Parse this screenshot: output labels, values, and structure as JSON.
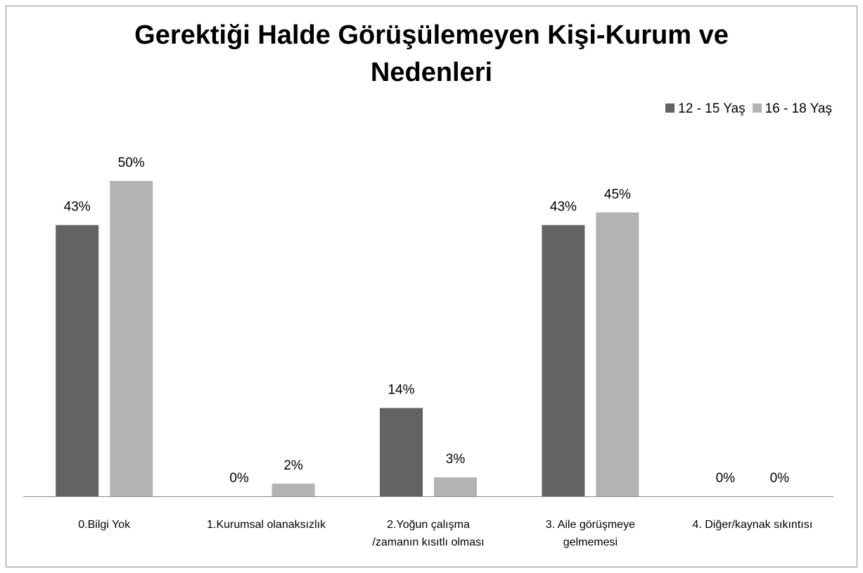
{
  "chart_data": {
    "type": "bar",
    "title": "Gerektiği Halde Görüşülemeyen Kişi-Kurum ve Nedenleri",
    "categories": [
      "0.Bilgi Yok",
      "1.Kurumsal olanaksızlık",
      "2.Yoğun çalışma /zamanın kısıtlı olması",
      "3. Aile görüşmeye gelmemesi",
      "4. Diğer/kaynak sıkıntısı"
    ],
    "series": [
      {
        "name": "12 - 15 Yaş",
        "color": "#636363",
        "values": [
          43,
          0,
          14,
          43,
          0
        ],
        "value_labels": [
          "43%",
          "0%",
          "14%",
          "43%",
          "0%"
        ]
      },
      {
        "name": "16 - 18 Yaş",
        "color": "#b3b3b3",
        "values": [
          50,
          2,
          3,
          45,
          0
        ],
        "value_labels": [
          "50%",
          "2%",
          "3%",
          "45%",
          "0%"
        ]
      }
    ],
    "legend": "top-right"
  }
}
